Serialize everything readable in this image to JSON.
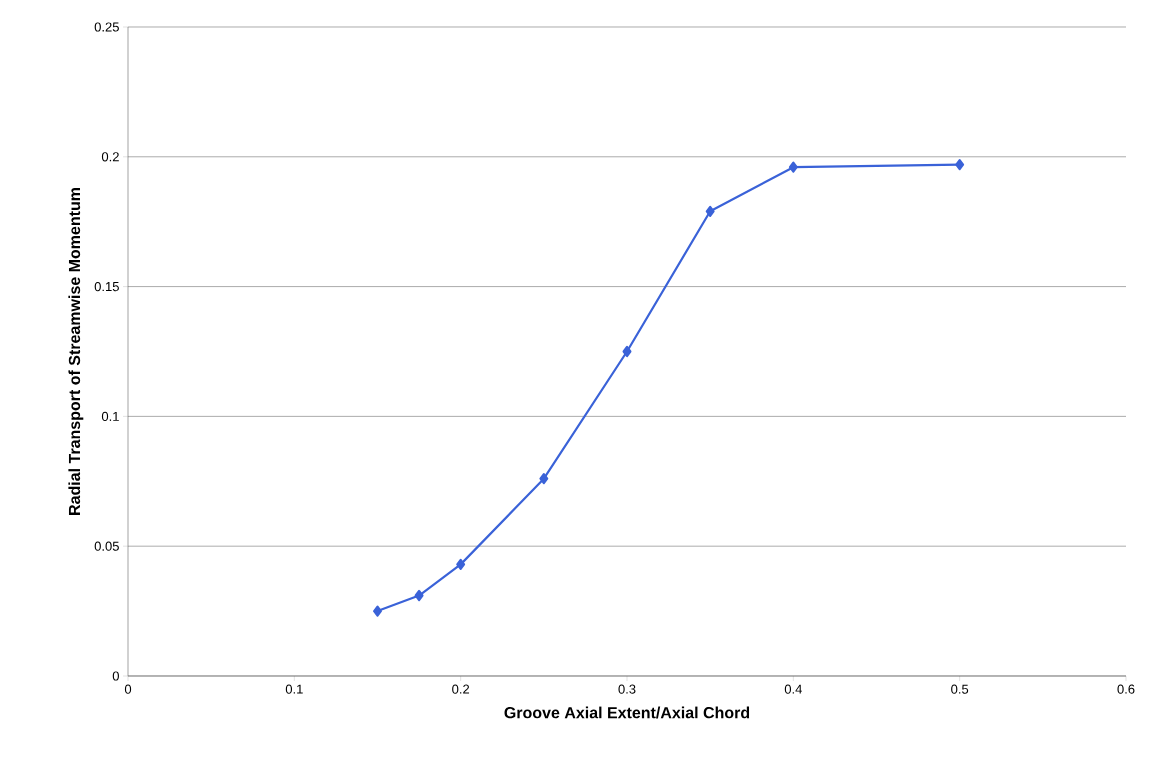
{
  "chart_data": {
    "type": "line",
    "xlabel": "Groove Axial Extent/Axial Chord",
    "ylabel": "Radial Transport of Streamwise Momentum",
    "x": [
      0.15,
      0.175,
      0.2,
      0.25,
      0.3,
      0.35,
      0.4,
      0.5
    ],
    "series": [
      {
        "color": "#3a62d8",
        "values": [
          0.025,
          0.031,
          0.043,
          0.076,
          0.125,
          0.179,
          0.196,
          0.197
        ]
      }
    ],
    "xlim": [
      0,
      0.6
    ],
    "ylim": [
      0,
      0.25
    ],
    "xticks": [
      0,
      0.1,
      0.2,
      0.3,
      0.4,
      0.5,
      0.6
    ],
    "yticks": [
      0,
      0.05,
      0.1,
      0.15,
      0.2,
      0.25
    ],
    "grid": "y",
    "marker": "diamond",
    "line_style": "solid"
  }
}
